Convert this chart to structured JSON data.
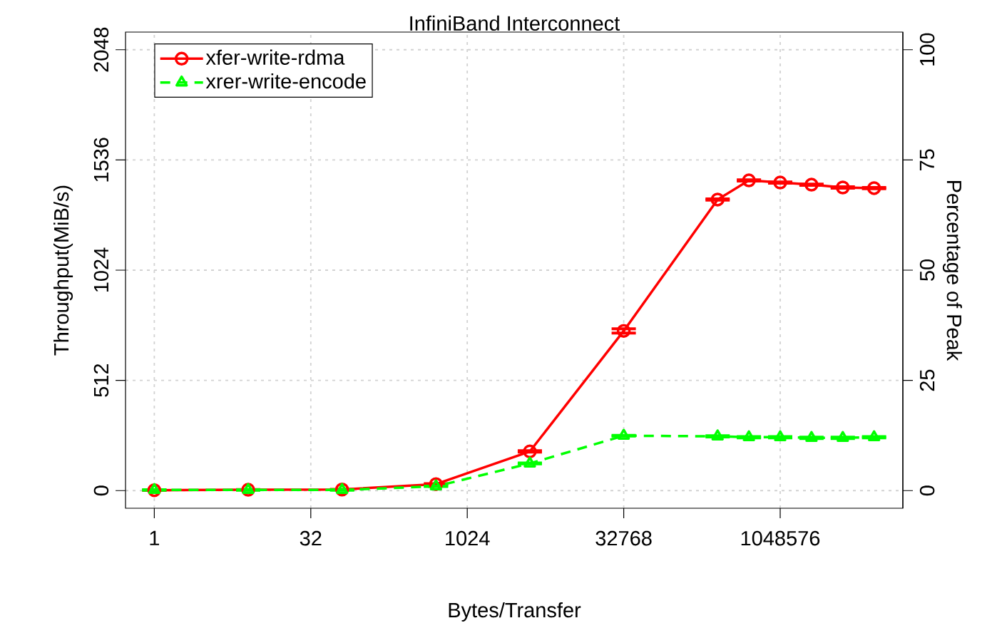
{
  "chart_data": {
    "type": "line",
    "title": "InfiniBand Interconnect",
    "xlabel": "Bytes/Transfer",
    "ylabel": "Throughput(MiB/s)",
    "y2label": "Percentage of Peak",
    "x": [
      1,
      8,
      64,
      512,
      4096,
      32768,
      262144,
      524288,
      1048576,
      2097152,
      4194304,
      8388608
    ],
    "series": [
      {
        "name": "xfer-write-rdma",
        "color": "#ff0000",
        "marker": "circle",
        "line_style": "solid",
        "values": [
          2,
          4,
          5,
          30,
          182,
          742,
          1352,
          1441,
          1431,
          1421,
          1408,
          1405
        ],
        "errors": [
          1,
          1,
          1,
          2,
          3,
          10,
          3,
          3,
          3,
          3,
          3,
          3
        ]
      },
      {
        "name": "xrer-write-encode",
        "color": "#00ff00",
        "marker": "triangle",
        "line_style": "dashed",
        "values": [
          3,
          3,
          3,
          20,
          126,
          255,
          252,
          248,
          248,
          245,
          245,
          248
        ],
        "errors": [
          1,
          1,
          1,
          1,
          2,
          2,
          3,
          3,
          3,
          3,
          3,
          3
        ]
      }
    ],
    "log": "x",
    "xlim": [
      0.5285,
      15870000
    ],
    "xticks": [
      1,
      32,
      1024,
      32768,
      1048576
    ],
    "ylim": [
      -81.92,
      2129.92
    ],
    "yticks": [
      0,
      512,
      1024,
      1536,
      2048
    ],
    "y2lim": [
      -4,
      104
    ],
    "y2ticks": [
      0,
      25,
      50,
      75,
      100
    ],
    "grid": true,
    "legend": "top left"
  }
}
